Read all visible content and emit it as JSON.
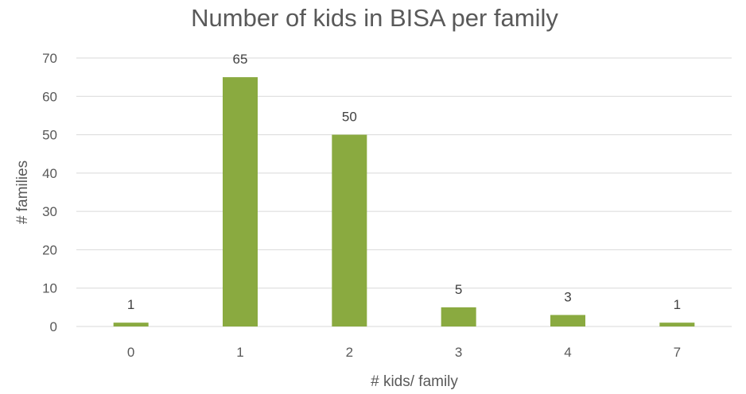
{
  "chart_data": {
    "type": "bar",
    "title": "Number of kids in BISA per family",
    "xlabel": "# kids/ family",
    "ylabel": "# families",
    "categories": [
      "0",
      "1",
      "2",
      "3",
      "4",
      "7"
    ],
    "values": [
      1,
      65,
      50,
      5,
      3,
      1
    ],
    "data_labels": [
      "1",
      "65",
      "50",
      "5",
      "3",
      "1"
    ],
    "ylim": [
      0,
      70
    ],
    "yticks": [
      0,
      10,
      20,
      30,
      40,
      50,
      60,
      70
    ],
    "ytick_labels": [
      "0",
      "10",
      "20",
      "30",
      "40",
      "50",
      "60",
      "70"
    ],
    "grid": true,
    "legend": "none",
    "bar_color": "#8aaa40",
    "grid_color": "#d9d9d9",
    "text_color": "#595959"
  }
}
